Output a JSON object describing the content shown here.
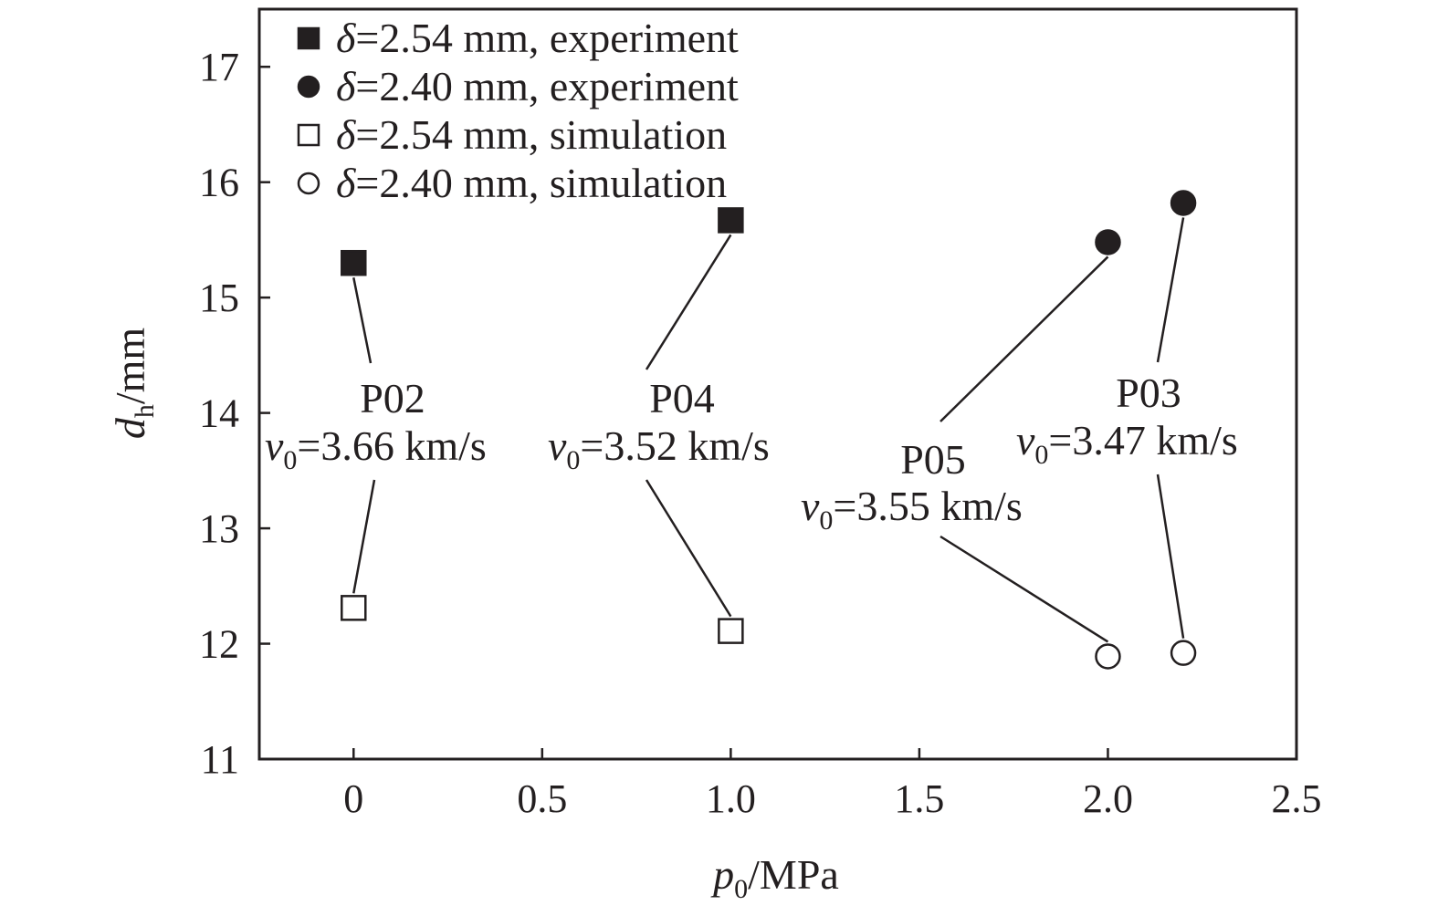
{
  "chart_data": {
    "type": "scatter",
    "xlabel": {
      "var": "p",
      "sub": "0",
      "unit": "/MPa"
    },
    "ylabel": {
      "var": "d",
      "sub": "h",
      "unit": "/mm"
    },
    "xlim": [
      -0.25,
      2.5
    ],
    "ylim": [
      11,
      17.5
    ],
    "x_ticks": [
      {
        "value": 0,
        "label": "0"
      },
      {
        "value": 0.5,
        "label": "0.5"
      },
      {
        "value": 1.0,
        "label": "1.0"
      },
      {
        "value": 1.5,
        "label": "1.5"
      },
      {
        "value": 2.0,
        "label": "2.0"
      },
      {
        "value": 2.5,
        "label": "2.5"
      }
    ],
    "y_ticks": [
      {
        "value": 11,
        "label": "11"
      },
      {
        "value": 12,
        "label": "12"
      },
      {
        "value": 13,
        "label": "13"
      },
      {
        "value": 14,
        "label": "14"
      },
      {
        "value": 15,
        "label": "15"
      },
      {
        "value": 16,
        "label": "16"
      },
      {
        "value": 17,
        "label": "17"
      }
    ],
    "grid": false,
    "legend_position": "top-left",
    "series": [
      {
        "name": "δ=2.54 mm, experiment",
        "name_sym": "δ",
        "name_rest": "=2.54 mm, experiment",
        "marker": "square",
        "filled": true,
        "x": [
          0,
          1.0
        ],
        "y": [
          15.3,
          15.67
        ]
      },
      {
        "name": "δ=2.40 mm, experiment",
        "name_sym": "δ",
        "name_rest": "=2.40 mm, experiment",
        "marker": "circle",
        "filled": true,
        "x": [
          2.0,
          2.2
        ],
        "y": [
          15.48,
          15.82
        ]
      },
      {
        "name": "δ=2.54 mm, simulation",
        "name_sym": "δ",
        "name_rest": "=2.54 mm, simulation",
        "marker": "square",
        "filled": false,
        "x": [
          0,
          1.0
        ],
        "y": [
          12.31,
          12.11
        ]
      },
      {
        "name": "δ=2.40 mm, simulation",
        "name_sym": "δ",
        "name_rest": "=2.40 mm, simulation",
        "marker": "circle",
        "filled": false,
        "x": [
          2.0,
          2.2
        ],
        "y": [
          11.89,
          11.92
        ]
      }
    ],
    "annotations": [
      {
        "id": "P02",
        "label": "P02",
        "velocity": "=3.66 km/s",
        "v_sym": "v",
        "v_sub": "0",
        "exp_point": [
          0,
          15.3
        ],
        "sim_point": [
          0,
          12.31
        ]
      },
      {
        "id": "P04",
        "label": "P04",
        "velocity": "=3.52 km/s",
        "v_sym": "v",
        "v_sub": "0",
        "exp_point": [
          1.0,
          15.67
        ],
        "sim_point": [
          1.0,
          12.11
        ]
      },
      {
        "id": "P05",
        "label": "P05",
        "velocity": "=3.55 km/s",
        "v_sym": "v",
        "v_sub": "0",
        "exp_point": [
          2.0,
          15.48
        ],
        "sim_point": [
          2.0,
          11.89
        ]
      },
      {
        "id": "P03",
        "label": "P03",
        "velocity": "=3.47 km/s",
        "v_sym": "v",
        "v_sub": "0",
        "exp_point": [
          2.2,
          15.82
        ],
        "sim_point": [
          2.2,
          11.92
        ]
      }
    ]
  }
}
